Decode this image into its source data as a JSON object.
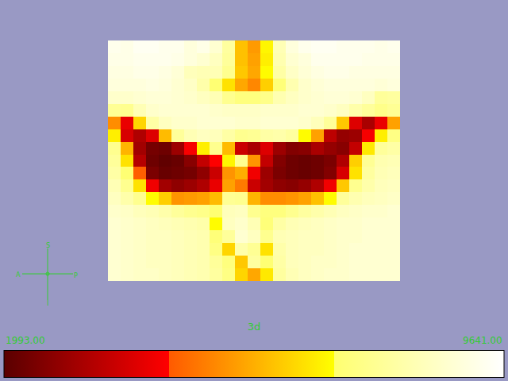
{
  "chart_data": {
    "type": "heatmap",
    "title": "3d",
    "tick_labels": false,
    "z": [
      [
        9300,
        9200,
        9400,
        9400,
        9300,
        9300,
        9000,
        9200,
        8800,
        7900,
        6100,
        5500,
        6900,
        8300,
        9000,
        9300,
        9400,
        9400,
        9300,
        9300,
        9300,
        9200,
        9300
      ],
      [
        9200,
        9200,
        9300,
        9300,
        9300,
        9200,
        9000,
        8800,
        8500,
        7800,
        6100,
        5600,
        6800,
        8200,
        8800,
        9000,
        9300,
        9300,
        9300,
        9300,
        9200,
        9200,
        9200
      ],
      [
        9100,
        9100,
        9200,
        9200,
        9100,
        8900,
        8400,
        8300,
        8300,
        7600,
        6200,
        5700,
        7000,
        8000,
        8600,
        8900,
        9100,
        9200,
        9200,
        9100,
        9100,
        9100,
        9100
      ],
      [
        9000,
        9000,
        9000,
        9100,
        9000,
        8800,
        8600,
        8100,
        7100,
        6600,
        5700,
        5200,
        6300,
        7200,
        8200,
        8700,
        8900,
        9000,
        9000,
        9000,
        9000,
        8900,
        9000
      ],
      [
        8700,
        8700,
        8800,
        8900,
        8900,
        8800,
        8700,
        8500,
        8300,
        7600,
        7300,
        7300,
        7500,
        8200,
        8500,
        8700,
        8800,
        8900,
        8900,
        8800,
        8500,
        7800,
        7900
      ],
      [
        7700,
        7600,
        8300,
        8700,
        8800,
        8800,
        8800,
        8800,
        8700,
        8600,
        8600,
        8600,
        8700,
        8700,
        8700,
        8800,
        8800,
        8700,
        8500,
        8100,
        7800,
        7500,
        7700
      ],
      [
        5300,
        4200,
        6400,
        8000,
        8500,
        8700,
        8700,
        8800,
        8800,
        8800,
        8700,
        8700,
        8800,
        8800,
        8800,
        8700,
        8400,
        7800,
        6200,
        4000,
        3200,
        4200,
        5600
      ],
      [
        6800,
        3900,
        3300,
        4000,
        6000,
        7800,
        8300,
        8500,
        8400,
        8000,
        7600,
        7700,
        8000,
        8100,
        7900,
        7000,
        5600,
        3500,
        2900,
        3000,
        4400,
        6800,
        7400
      ],
      [
        7600,
        5900,
        3100,
        2400,
        2300,
        3000,
        4400,
        6800,
        7600,
        6000,
        3700,
        3200,
        4000,
        3000,
        2600,
        2700,
        3200,
        2900,
        2700,
        3600,
        6700,
        7800,
        8000
      ],
      [
        7800,
        6600,
        3400,
        2300,
        2100,
        2200,
        2700,
        3600,
        4500,
        6900,
        7600,
        5400,
        3600,
        2600,
        2300,
        2200,
        2300,
        2500,
        3300,
        6300,
        7700,
        8200,
        8300
      ],
      [
        8000,
        7100,
        4600,
        2500,
        2200,
        2300,
        2400,
        2800,
        3700,
        5400,
        5800,
        4300,
        3000,
        2500,
        2300,
        2200,
        2300,
        2600,
        3900,
        6600,
        7900,
        8300,
        8400
      ],
      [
        8300,
        7600,
        6600,
        4300,
        3100,
        2800,
        3000,
        3300,
        4200,
        5600,
        5000,
        3700,
        3100,
        2800,
        2700,
        2900,
        3300,
        4300,
        6200,
        7600,
        8100,
        8400,
        8500
      ],
      [
        8500,
        8100,
        7600,
        7000,
        6300,
        5400,
        5500,
        5600,
        6000,
        7700,
        7600,
        5900,
        5300,
        5300,
        5400,
        5600,
        6100,
        7000,
        7800,
        8200,
        8400,
        8500,
        8600
      ],
      [
        8700,
        8600,
        8400,
        8300,
        8100,
        7800,
        7600,
        7500,
        7100,
        8400,
        8500,
        7600,
        7300,
        7300,
        7600,
        7900,
        8100,
        8300,
        8500,
        8600,
        8700,
        8700,
        8800
      ],
      [
        8800,
        8700,
        8600,
        8500,
        8400,
        8300,
        8200,
        8100,
        7000,
        8500,
        8700,
        8300,
        7200,
        8000,
        8300,
        8400,
        8500,
        8600,
        8700,
        8700,
        8800,
        8800,
        8800
      ],
      [
        8800,
        8700,
        8600,
        8500,
        8500,
        8400,
        8300,
        8200,
        7200,
        7800,
        8800,
        8500,
        7600,
        8300,
        8400,
        8500,
        8500,
        8600,
        8700,
        8700,
        8800,
        8800,
        8800
      ],
      [
        8800,
        8700,
        8600,
        8500,
        8500,
        8400,
        8300,
        8200,
        7400,
        6400,
        8100,
        7700,
        6600,
        8100,
        8400,
        8500,
        8500,
        8600,
        8700,
        8800,
        8800,
        8800,
        8800
      ],
      [
        8800,
        8700,
        8600,
        8500,
        8500,
        8400,
        8300,
        8200,
        7800,
        7300,
        6200,
        7900,
        7100,
        8000,
        8400,
        8500,
        8600,
        8600,
        8700,
        8800,
        8800,
        8800,
        8800
      ],
      [
        8800,
        8700,
        8600,
        8600,
        8500,
        8400,
        8300,
        8200,
        7900,
        7400,
        6400,
        5700,
        6700,
        7900,
        8300,
        8500,
        8600,
        8700,
        8700,
        8800,
        8800,
        8800,
        8800
      ]
    ],
    "colorbar": {
      "range": [
        1993,
        9641
      ],
      "ticks": [
        {
          "value": 1993,
          "label": "1993.00"
        },
        {
          "value": 9641,
          "label": "9641.00"
        }
      ]
    },
    "orientation_marker": {
      "top": "S",
      "bottom": "I",
      "left": "A",
      "right": "P"
    }
  }
}
